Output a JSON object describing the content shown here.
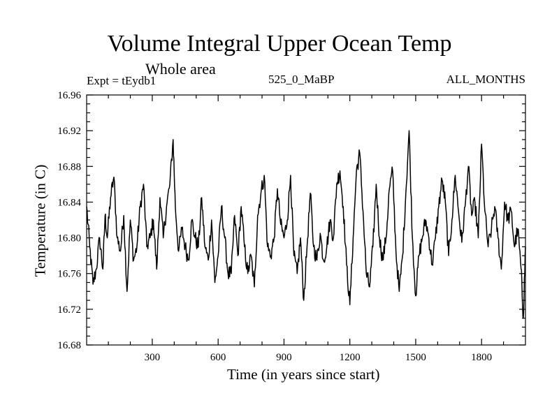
{
  "chart_data": {
    "type": "line",
    "title": "Volume Integral Upper Ocean Temp",
    "subtitle": "Whole area",
    "expt_label": "Expt = tEydb1",
    "run_label": "525_0_MaBP",
    "period_label": "ALL_MONTHS",
    "xlabel": "Time (in years since start)",
    "ylabel": "Temperature (in C)",
    "xlim": [
      1,
      2000
    ],
    "ylim": [
      16.68,
      16.96
    ],
    "xticks": [
      300,
      600,
      900,
      1200,
      1500,
      1800
    ],
    "xtick_labels": [
      "300",
      "600",
      "900",
      "1200",
      "1500",
      "1800"
    ],
    "yticks": [
      16.68,
      16.72,
      16.76,
      16.8,
      16.84,
      16.88,
      16.92,
      16.96
    ],
    "ytick_labels": [
      "16.68",
      "16.72",
      "16.76",
      "16.80",
      "16.84",
      "16.88",
      "16.92",
      "16.96"
    ],
    "grid": false,
    "series": [
      {
        "name": "Volume integral upper ocean temperature",
        "x": [
          1,
          15,
          30,
          45,
          60,
          75,
          85,
          95,
          110,
          125,
          140,
          155,
          170,
          185,
          200,
          215,
          230,
          245,
          260,
          275,
          290,
          305,
          320,
          335,
          350,
          365,
          380,
          395,
          405,
          420,
          435,
          450,
          465,
          480,
          495,
          510,
          525,
          540,
          555,
          570,
          585,
          600,
          615,
          630,
          645,
          660,
          675,
          690,
          705,
          720,
          735,
          750,
          765,
          780,
          795,
          810,
          825,
          840,
          855,
          870,
          885,
          900,
          915,
          930,
          945,
          960,
          975,
          990,
          1005,
          1020,
          1035,
          1050,
          1065,
          1080,
          1095,
          1110,
          1125,
          1140,
          1155,
          1170,
          1185,
          1200,
          1215,
          1230,
          1245,
          1260,
          1275,
          1290,
          1305,
          1320,
          1335,
          1350,
          1365,
          1380,
          1395,
          1410,
          1425,
          1440,
          1455,
          1470,
          1485,
          1500,
          1515,
          1530,
          1545,
          1560,
          1575,
          1590,
          1605,
          1620,
          1635,
          1650,
          1665,
          1680,
          1695,
          1710,
          1725,
          1740,
          1755,
          1770,
          1785,
          1800,
          1815,
          1830,
          1845,
          1860,
          1875,
          1890,
          1905,
          1920,
          1935,
          1950,
          1965,
          1980,
          1990,
          2000
        ],
        "values": [
          16.835,
          16.79,
          16.748,
          16.765,
          16.8,
          16.765,
          16.825,
          16.8,
          16.845,
          16.868,
          16.8,
          16.785,
          16.825,
          16.74,
          16.82,
          16.775,
          16.79,
          16.835,
          16.86,
          16.79,
          16.8,
          16.82,
          16.765,
          16.845,
          16.8,
          16.835,
          16.86,
          16.91,
          16.835,
          16.785,
          16.81,
          16.79,
          16.775,
          16.82,
          16.8,
          16.79,
          16.845,
          16.79,
          16.775,
          16.82,
          16.75,
          16.78,
          16.835,
          16.8,
          16.76,
          16.76,
          16.825,
          16.78,
          16.835,
          16.79,
          16.76,
          16.78,
          16.745,
          16.825,
          16.85,
          16.87,
          16.79,
          16.78,
          16.8,
          16.855,
          16.815,
          16.8,
          16.82,
          16.87,
          16.78,
          16.76,
          16.8,
          16.73,
          16.79,
          16.85,
          16.79,
          16.775,
          16.805,
          16.775,
          16.79,
          16.82,
          16.8,
          16.86,
          16.875,
          16.835,
          16.77,
          16.725,
          16.8,
          16.875,
          16.895,
          16.83,
          16.76,
          16.745,
          16.79,
          16.86,
          16.8,
          16.775,
          16.8,
          16.855,
          16.875,
          16.785,
          16.74,
          16.78,
          16.85,
          16.92,
          16.8,
          16.735,
          16.78,
          16.8,
          16.82,
          16.8,
          16.77,
          16.8,
          16.835,
          16.865,
          16.84,
          16.78,
          16.82,
          16.87,
          16.83,
          16.795,
          16.835,
          16.88,
          16.825,
          16.84,
          16.8,
          16.905,
          16.83,
          16.79,
          16.81,
          16.835,
          16.8,
          16.765,
          16.84,
          16.82,
          16.83,
          16.79,
          16.81,
          16.765,
          16.71,
          16.79
        ]
      }
    ]
  }
}
